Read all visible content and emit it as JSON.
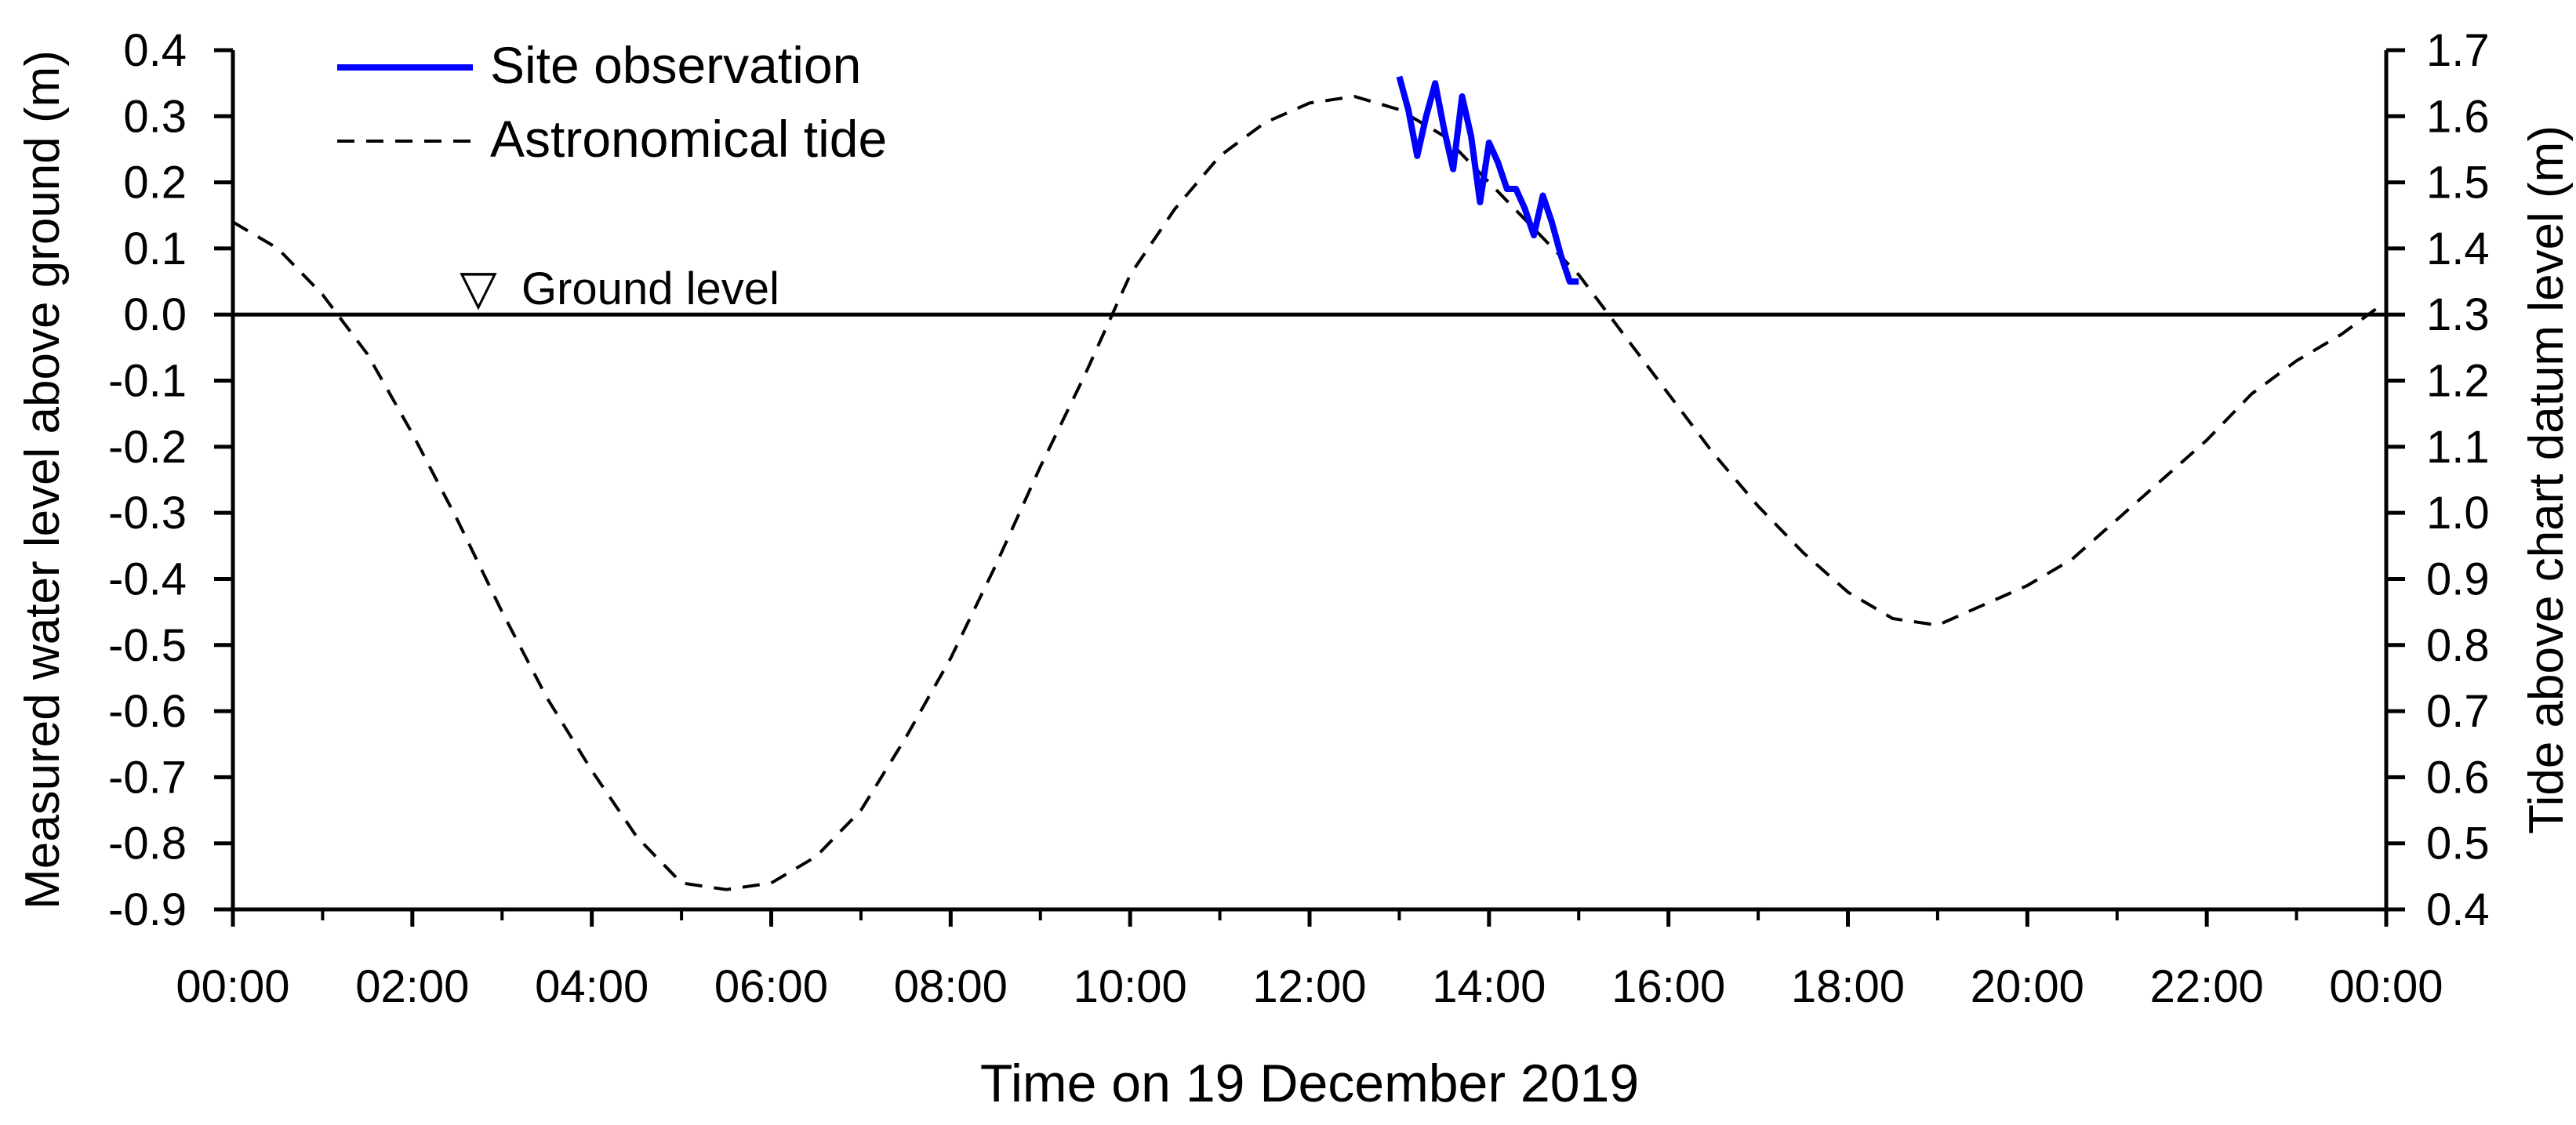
{
  "chart_data": {
    "type": "line",
    "title": "",
    "xlabel": "Time on 19 December 2019",
    "ylabel_left": "Measured water level above ground (m)",
    "ylabel_right": "Tide above chart datum level (m)",
    "x_unit": "hours",
    "xlim": [
      0,
      24
    ],
    "x_tick_values": [
      0,
      2,
      4,
      6,
      8,
      10,
      12,
      14,
      16,
      18,
      20,
      22,
      24
    ],
    "x_tick_labels": [
      "00:00",
      "02:00",
      "04:00",
      "06:00",
      "08:00",
      "10:00",
      "12:00",
      "14:00",
      "16:00",
      "18:00",
      "20:00",
      "22:00",
      "00:00"
    ],
    "ylim_left": [
      -0.9,
      0.4
    ],
    "y_tick_values_left": [
      0.4,
      0.3,
      0.2,
      0.1,
      0.0,
      -0.1,
      -0.2,
      -0.3,
      -0.4,
      -0.5,
      -0.6,
      -0.7,
      -0.8,
      -0.9
    ],
    "y_tick_labels_left": [
      "0.4",
      "0.3",
      "0.2",
      "0.1",
      "0.0",
      "-0.1",
      "-0.2",
      "-0.3",
      "-0.4",
      "-0.5",
      "-0.6",
      "-0.7",
      "-0.8",
      "-0.9"
    ],
    "ylim_right": [
      0.4,
      1.7
    ],
    "y_tick_values_right": [
      1.7,
      1.6,
      1.5,
      1.4,
      1.3,
      1.2,
      1.1,
      1.0,
      0.9,
      0.8,
      0.7,
      0.6,
      0.5,
      0.4
    ],
    "y_tick_labels_right": [
      "1.7",
      "1.6",
      "1.5",
      "1.4",
      "1.3",
      "1.2",
      "1.1",
      "1.0",
      "0.9",
      "0.8",
      "0.7",
      "0.6",
      "0.5",
      "0.4"
    ],
    "legend": {
      "placement": "top-left",
      "entries": [
        {
          "label": "Site observation",
          "style": "solid",
          "color": "#0000ff"
        },
        {
          "label": "Astronomical tide",
          "style": "dashed",
          "color": "#000000"
        }
      ]
    },
    "reference_line": {
      "label": "Ground level",
      "y": 0.0,
      "symbol": "▽"
    },
    "series": [
      {
        "name": "Astronomical tide",
        "axis": "left",
        "color": "#000000",
        "style": "dashed",
        "x": [
          0,
          0.5,
          1.0,
          1.5,
          2.0,
          2.5,
          3.0,
          3.5,
          4.0,
          4.5,
          5.0,
          5.5,
          6.0,
          6.5,
          7.0,
          7.5,
          8.0,
          8.5,
          9.0,
          9.5,
          10.0,
          10.5,
          11.0,
          11.5,
          12.0,
          12.5,
          13.0,
          13.5,
          14.0,
          14.5,
          15.0,
          15.5,
          16.0,
          16.5,
          17.0,
          17.5,
          18.0,
          18.5,
          19.0,
          19.5,
          20.0,
          20.5,
          21.0,
          21.5,
          22.0,
          22.5,
          23.0,
          23.5,
          24.0
        ],
        "values": [
          0.14,
          0.1,
          0.03,
          -0.06,
          -0.18,
          -0.31,
          -0.45,
          -0.58,
          -0.69,
          -0.79,
          -0.86,
          -0.87,
          -0.86,
          -0.82,
          -0.75,
          -0.64,
          -0.52,
          -0.38,
          -0.23,
          -0.09,
          0.06,
          0.16,
          0.24,
          0.29,
          0.32,
          0.33,
          0.31,
          0.27,
          0.2,
          0.13,
          0.06,
          -0.03,
          -0.12,
          -0.21,
          -0.29,
          -0.36,
          -0.42,
          -0.46,
          -0.47,
          -0.44,
          -0.41,
          -0.37,
          -0.31,
          -0.25,
          -0.19,
          -0.12,
          -0.07,
          -0.03,
          0.02
        ]
      },
      {
        "name": "Site observation",
        "axis": "left",
        "color": "#0000ff",
        "style": "solid",
        "x": [
          13.0,
          13.1,
          13.2,
          13.3,
          13.4,
          13.5,
          13.6,
          13.7,
          13.8,
          13.9,
          14.0,
          14.1,
          14.2,
          14.3,
          14.4,
          14.5,
          14.6,
          14.7,
          14.8,
          14.9,
          15.0
        ],
        "values": [
          0.36,
          0.31,
          0.24,
          0.3,
          0.35,
          0.28,
          0.22,
          0.33,
          0.27,
          0.17,
          0.26,
          0.23,
          0.19,
          0.19,
          0.16,
          0.12,
          0.18,
          0.14,
          0.09,
          0.05,
          0.05
        ]
      }
    ]
  },
  "colors": {
    "axis": "#000000",
    "observation": "#0000ff",
    "tide": "#000000",
    "background": "#ffffff"
  }
}
